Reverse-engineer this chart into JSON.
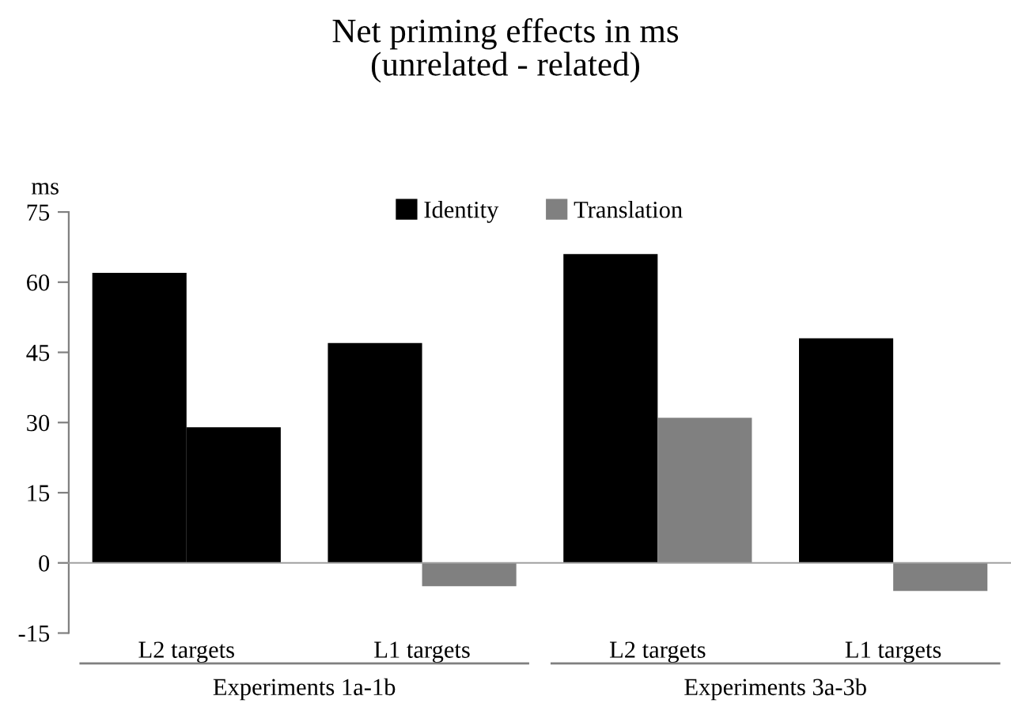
{
  "chart_data": {
    "type": "bar",
    "title": "Net priming effects in ms\n(unrelated - related)",
    "ylabel": "ms",
    "categories": [
      "L2 targets",
      "L1 targets",
      "L2 targets",
      "L1 targets"
    ],
    "series": [
      {
        "name": "Identity",
        "color": "#000000",
        "values": [
          62,
          47,
          66,
          48
        ]
      },
      {
        "name": "Translation",
        "color": "#808080",
        "colors": [
          "#000000",
          "#808080",
          "#808080",
          "#808080"
        ],
        "values": [
          29,
          -5,
          31,
          -6
        ]
      }
    ],
    "ylim": [
      -15,
      75
    ],
    "yticks": [
      -15,
      0,
      15,
      30,
      45,
      60,
      75
    ],
    "legend": "top",
    "annotations": [
      "Experiments 1a-1b",
      "Experiments 3a-3b"
    ]
  }
}
